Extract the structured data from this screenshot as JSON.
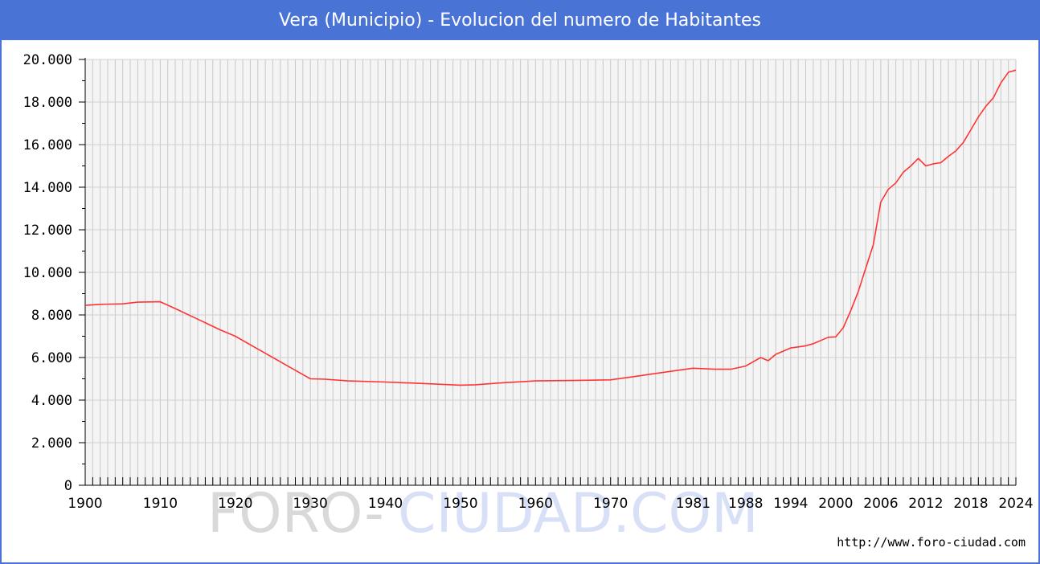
{
  "chart_data": {
    "type": "line",
    "title": "Vera (Municipio) - Evolucion del numero de Habitantes",
    "xlabel": "",
    "ylabel": "",
    "xlim": [
      1900,
      2024
    ],
    "ylim": [
      0,
      20000
    ],
    "y_ticks": [
      0,
      2000,
      4000,
      6000,
      8000,
      10000,
      12000,
      14000,
      16000,
      18000,
      20000
    ],
    "y_tick_labels": [
      "0",
      "2.000",
      "4.000",
      "6.000",
      "8.000",
      "10.000",
      "12.000",
      "14.000",
      "16.000",
      "18.000",
      "20.000"
    ],
    "x_tick_labels": [
      "1900",
      "1910",
      "1920",
      "1930",
      "1940",
      "1950",
      "1960",
      "1970",
      "1981",
      "1988",
      "1994",
      "2000",
      "2006",
      "2012",
      "2018",
      "2024"
    ],
    "grid": true,
    "series": [
      {
        "color": "#ff3333",
        "x": [
          1900,
          1902,
          1905,
          1907,
          1910,
          1912,
          1915,
          1918,
          1920,
          1923,
          1926,
          1929,
          1930,
          1932,
          1935,
          1940,
          1945,
          1950,
          1952,
          1955,
          1960,
          1965,
          1970,
          1973,
          1975,
          1978,
          1980,
          1981,
          1984,
          1986,
          1988,
          1989,
          1990,
          1991,
          1992,
          1993,
          1994,
          1995,
          1996,
          1997,
          1998,
          1999,
          2000,
          2001,
          2002,
          2003,
          2004,
          2005,
          2006,
          2007,
          2008,
          2009,
          2010,
          2011,
          2012,
          2013,
          2014,
          2015,
          2016,
          2017,
          2018,
          2019,
          2020,
          2021,
          2022,
          2023,
          2024
        ],
        "y": [
          8450,
          8500,
          8520,
          8600,
          8620,
          8300,
          7800,
          7300,
          7000,
          6400,
          5800,
          5200,
          5000,
          4980,
          4900,
          4850,
          4780,
          4700,
          4720,
          4800,
          4900,
          4920,
          4950,
          5100,
          5200,
          5350,
          5450,
          5500,
          5450,
          5450,
          5600,
          5800,
          6000,
          5850,
          6150,
          6300,
          6450,
          6500,
          6550,
          6650,
          6800,
          6950,
          6970,
          7400,
          8200,
          9100,
          10200,
          11300,
          13300,
          13900,
          14200,
          14700,
          15000,
          15350,
          15000,
          15100,
          15150,
          15450,
          15700,
          16100,
          16700,
          17300,
          17800,
          18200,
          18900,
          19400,
          19500
        ]
      }
    ]
  },
  "watermark": {
    "part1": "FORO-",
    "part2": "CIUDAD.COM",
    "color1": "#d9d9d9",
    "color2": "#d8e0f7"
  },
  "source_url": "http://www.foro-ciudad.com"
}
